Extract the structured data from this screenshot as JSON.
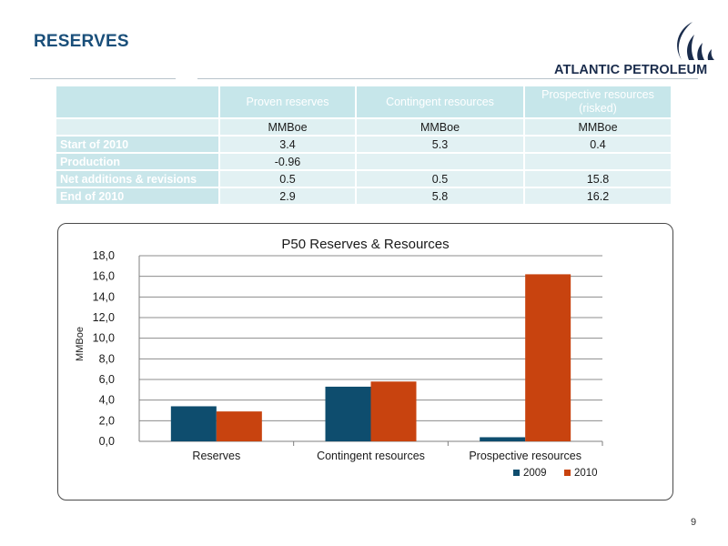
{
  "page": {
    "title": "RESERVES",
    "page_number": "9"
  },
  "logo": {
    "text": "ATLANTIC PETROLEUM"
  },
  "table": {
    "headers": [
      "",
      "Proven reserves",
      "Contingent resources",
      "Prospective resources (risked)"
    ],
    "units_row": [
      "",
      "MMBoe",
      "MMBoe",
      "MMBoe"
    ],
    "rows": [
      [
        "Start of 2010",
        "3.4",
        "5.3",
        "0.4"
      ],
      [
        "Production",
        "-0.96",
        "",
        ""
      ],
      [
        "Net additions & revisions",
        "0.5",
        "0.5",
        "15.8"
      ],
      [
        "End of 2010",
        "2.9",
        "5.8",
        "16.2"
      ]
    ]
  },
  "chart_data": {
    "type": "bar",
    "title": "P50 Reserves & Resources",
    "ylabel": "MMBoe",
    "xlabel": "",
    "categories": [
      "Reserves",
      "Contingent resources",
      "Prospective resources"
    ],
    "series": [
      {
        "name": "2009",
        "values": [
          3.4,
          5.3,
          0.4
        ],
        "color": "#0e4d6e"
      },
      {
        "name": "2010",
        "values": [
          2.9,
          5.8,
          16.2
        ],
        "color": "#c8430f"
      }
    ],
    "ylim": [
      0,
      18
    ],
    "ytick_labels": [
      "0,0",
      "2,0",
      "4,0",
      "6,0",
      "8,0",
      "10,0",
      "12,0",
      "14,0",
      "16,0",
      "18,0"
    ],
    "grid": true,
    "legend": "bottom-right"
  },
  "colors": {
    "title": "#1a4f7a",
    "header_fill": "#c6e6ea",
    "cell_fill": "#e2f1f3"
  }
}
